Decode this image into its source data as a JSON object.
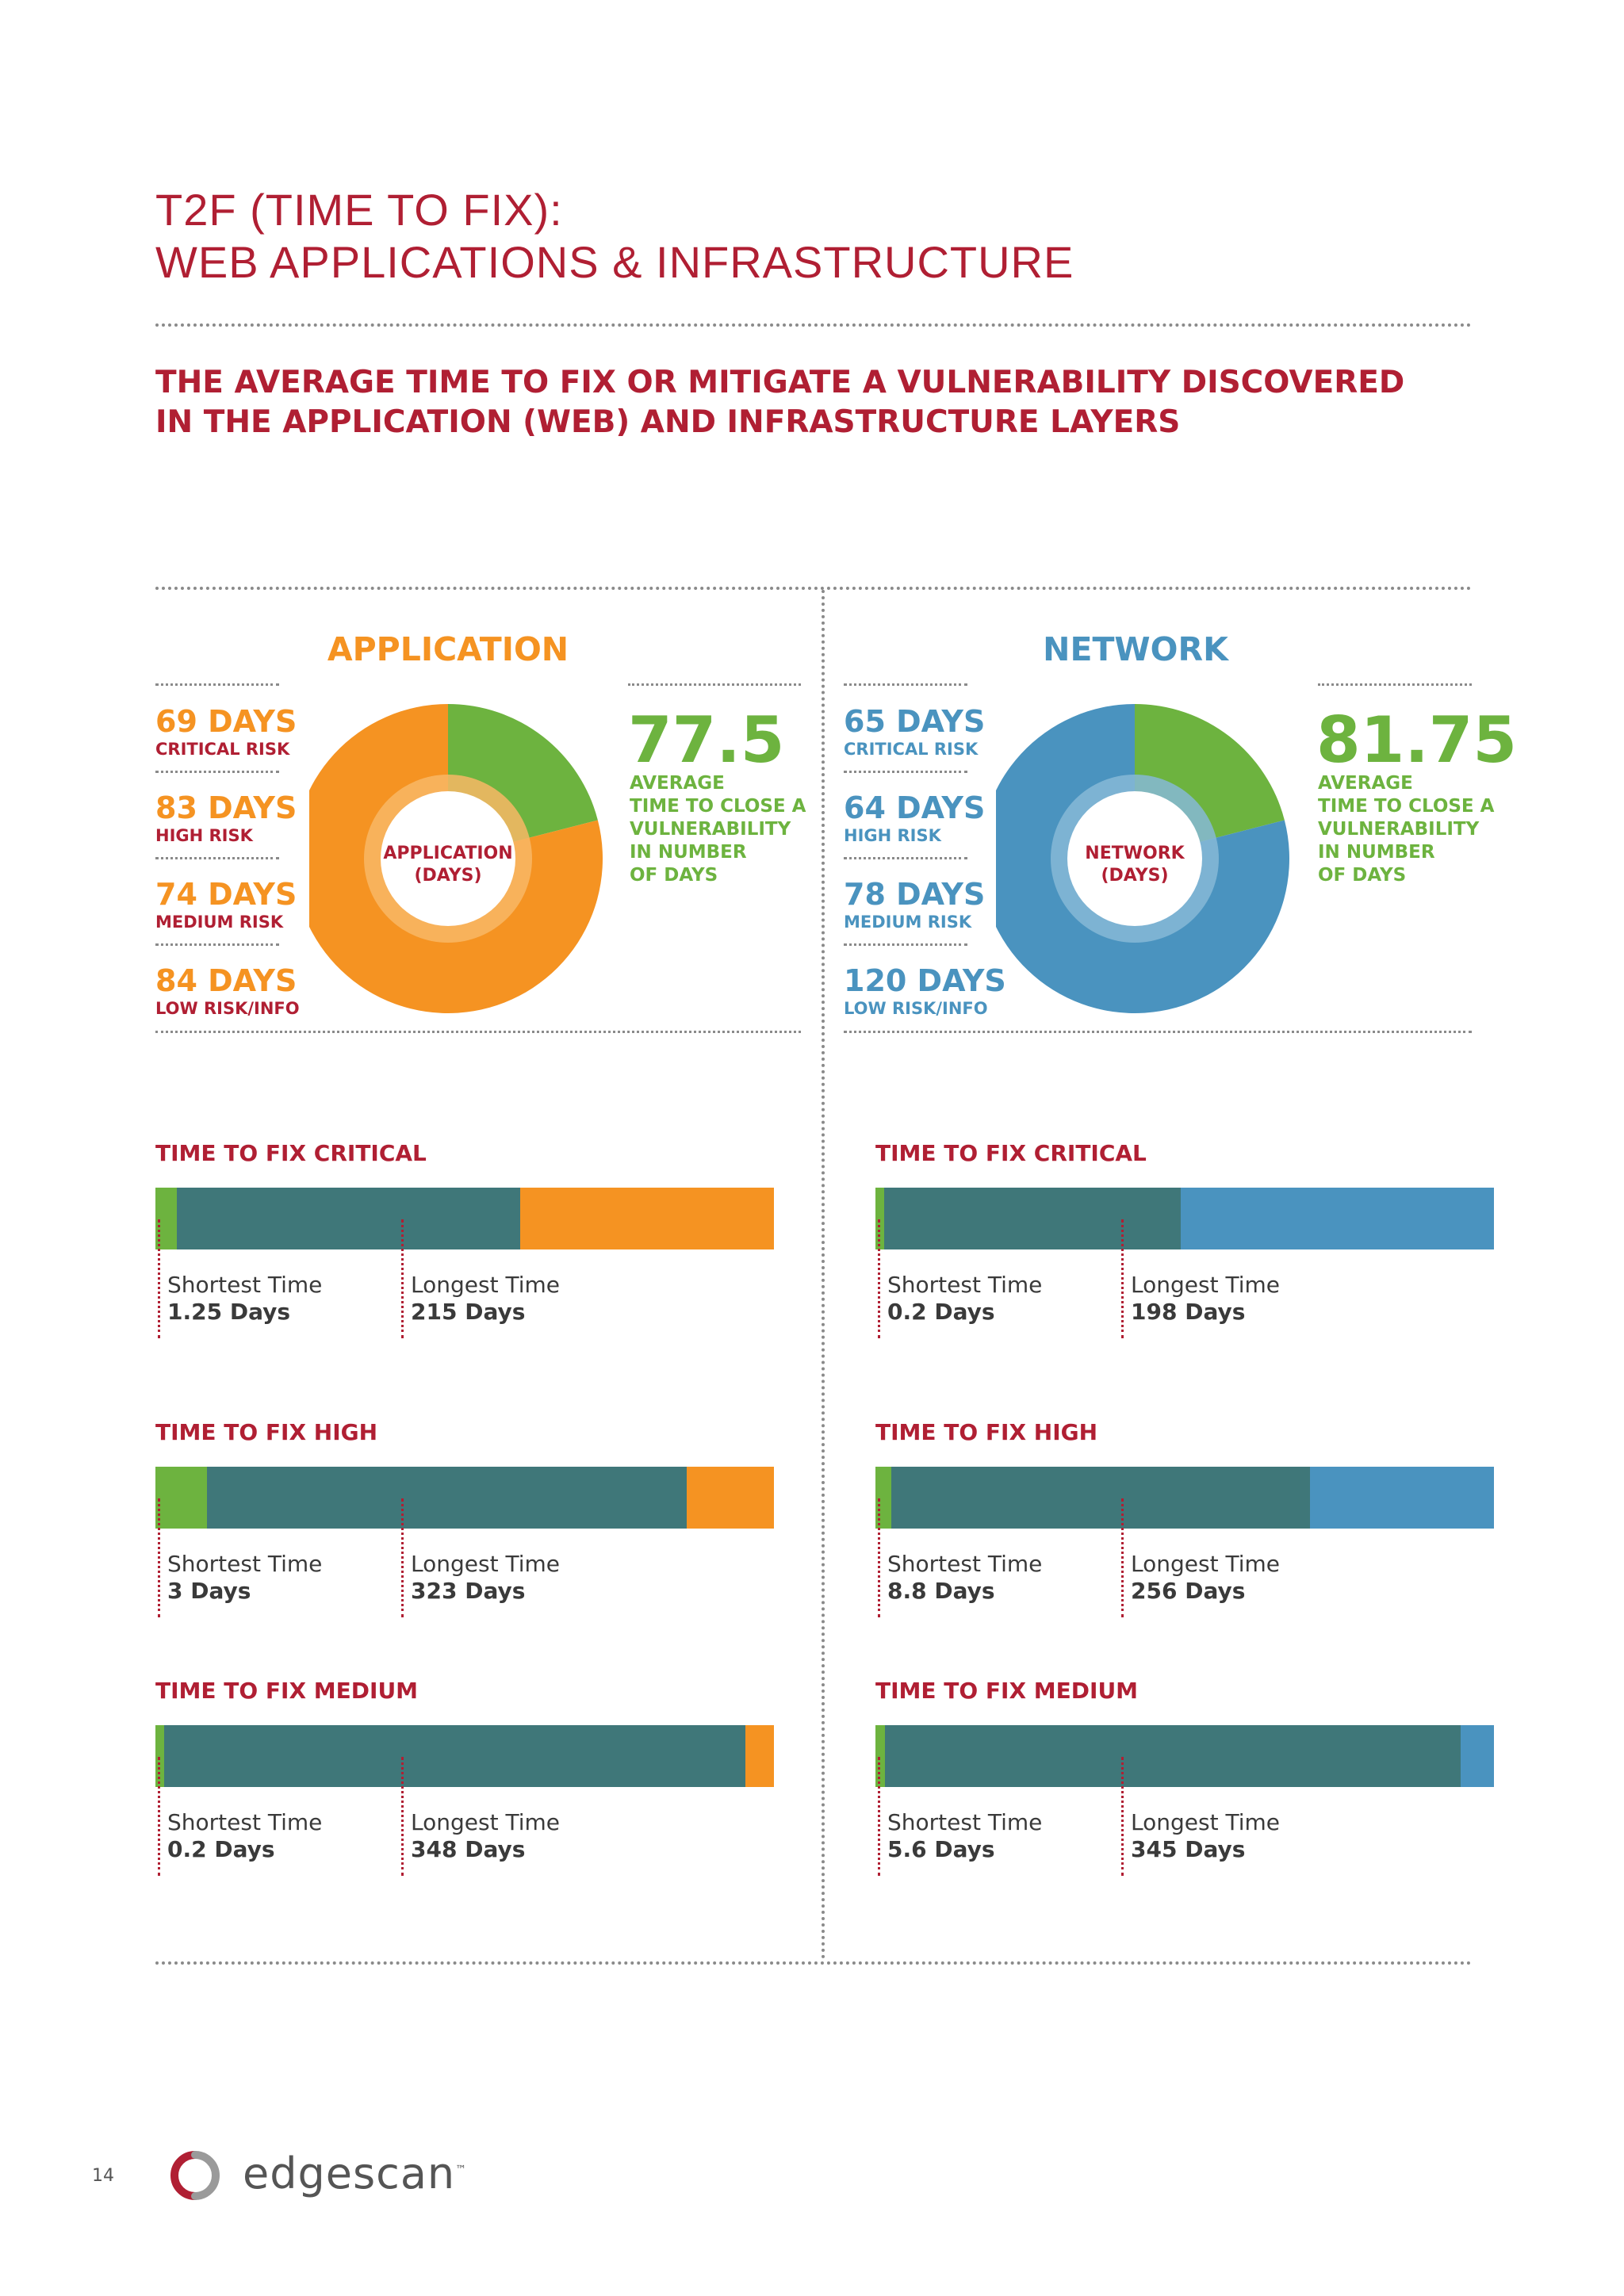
{
  "page": {
    "title_line1": "T2F (TIME TO FIX):",
    "title_line2": "WEB APPLICATIONS & INFRASTRUCTURE",
    "subtitle_line1": "THE AVERAGE TIME TO FIX OR MITIGATE A VULNERABILITY DISCOVERED",
    "subtitle_line2": "IN THE APPLICATION (WEB) AND INFRASTRUCTURE LAYERS",
    "page_number": "14",
    "brand": "edgescan",
    "brand_tm": "™"
  },
  "colors": {
    "red": "#b01f33",
    "green": "#6db33f",
    "orange": "#f59322",
    "blue": "#4a93bf",
    "teal": "#3f7779",
    "orange_ring": "#f8b765",
    "blue_ring": "#86b9d6",
    "green_ring": "#a6d07f"
  },
  "application": {
    "heading": "APPLICATION",
    "donut_label_line1": "APPLICATION",
    "donut_label_line2": "(DAYS)",
    "risks": [
      {
        "days": "69 DAYS",
        "label": "CRITICAL RISK"
      },
      {
        "days": "83 DAYS",
        "label": "HIGH RISK"
      },
      {
        "days": "74 DAYS",
        "label": "MEDIUM RISK"
      },
      {
        "days": "84 DAYS",
        "label": "LOW RISK/INFO"
      }
    ],
    "average": "77.5",
    "average_text": [
      "AVERAGE",
      "TIME TO CLOSE A",
      "VULNERABILITY",
      "IN NUMBER",
      "OF DAYS"
    ]
  },
  "network": {
    "heading": "NETWORK",
    "donut_label_line1": "NETWORK",
    "donut_label_line2": "(DAYS)",
    "risks": [
      {
        "days": "65 DAYS",
        "label": "CRITICAL RISK"
      },
      {
        "days": "64 DAYS",
        "label": "HIGH RISK"
      },
      {
        "days": "78 DAYS",
        "label": "MEDIUM RISK"
      },
      {
        "days": "120 DAYS",
        "label": "LOW RISK/INFO"
      }
    ],
    "average": "81.75",
    "average_text": [
      "AVERAGE",
      "TIME TO CLOSE A",
      "VULNERABILITY",
      "IN NUMBER",
      "OF DAYS"
    ]
  },
  "chart_data": [
    {
      "type": "pie",
      "title": "APPLICATION",
      "segments": [
        {
          "color": "#6db33f",
          "fraction": 0.21
        },
        {
          "color": "#f59322",
          "fraction": 0.79
        }
      ]
    },
    {
      "type": "pie",
      "title": "NETWORK",
      "segments": [
        {
          "color": "#6db33f",
          "fraction": 0.21
        },
        {
          "color": "#4a93bf",
          "fraction": 0.79
        }
      ]
    },
    {
      "type": "bar",
      "bars": [
        {
          "panel": "application",
          "title": "TIME TO FIX CRITICAL",
          "shortest_label": "Shortest Time",
          "shortest": "1.25 Days",
          "longest_label": "Longest Time",
          "longest": "215 Days",
          "green_frac": 0.035,
          "teal_frac": 0.555
        },
        {
          "panel": "application",
          "title": "TIME TO FIX HIGH",
          "shortest_label": "Shortest Time",
          "shortest": "3 Days",
          "longest_label": "Longest Time",
          "longest": "323 Days",
          "green_frac": 0.083,
          "teal_frac": 0.775
        },
        {
          "panel": "application",
          "title": "TIME TO FIX MEDIUM",
          "shortest_label": "Shortest Time",
          "shortest": "0.2 Days",
          "longest_label": "Longest Time",
          "longest": "348 Days",
          "green_frac": 0.014,
          "teal_frac": 0.94
        },
        {
          "panel": "network",
          "title": "TIME TO FIX CRITICAL",
          "shortest_label": "Shortest Time",
          "shortest": "0.2 Days",
          "longest_label": "Longest Time",
          "longest": "198 Days",
          "green_frac": 0.014,
          "teal_frac": 0.48
        },
        {
          "panel": "network",
          "title": "TIME TO FIX HIGH",
          "shortest_label": "Shortest Time",
          "shortest": "8.8 Days",
          "longest_label": "Longest Time",
          "longest": "256 Days",
          "green_frac": 0.025,
          "teal_frac": 0.677
        },
        {
          "panel": "network",
          "title": "TIME TO FIX MEDIUM",
          "shortest_label": "Shortest Time",
          "shortest": "5.6 Days",
          "longest_label": "Longest Time",
          "longest": "345 Days",
          "green_frac": 0.016,
          "teal_frac": 0.931
        }
      ]
    }
  ]
}
